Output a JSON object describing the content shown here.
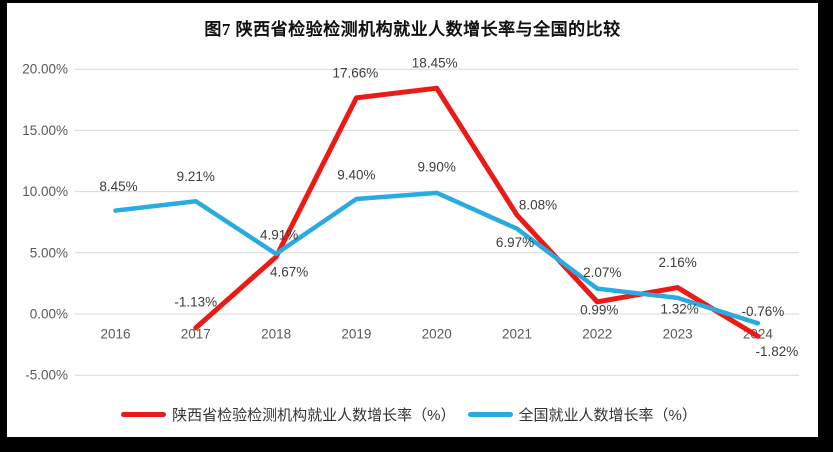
{
  "chart_data": {
    "type": "line",
    "title": "图7 陕西省检验检测机构就业人数增长率与全国的比较",
    "categories": [
      "2016",
      "2017",
      "2018",
      "2019",
      "2020",
      "2021",
      "2022",
      "2023",
      "2024"
    ],
    "y_tick_labels": [
      "20.00%",
      "15.00%",
      "10.00%",
      "5.00%",
      "0.00%",
      "-5.00%"
    ],
    "ylim": [
      -5,
      20
    ],
    "grid": "horizontal",
    "legend_position": "bottom",
    "series": [
      {
        "name": "陕西省检验检测机构就业人数增长率（%）",
        "color": "#ec1a16",
        "values": [
          null,
          -1.13,
          4.67,
          17.66,
          18.45,
          8.08,
          0.99,
          2.16,
          -1.82
        ],
        "labels": [
          "",
          "-1.13%",
          "4.67%",
          "17.66%",
          "18.45%",
          "8.08%",
          "0.99%",
          "2.16%",
          "-1.82%"
        ],
        "label_offsets": [
          [
            0,
            0
          ],
          [
            0,
            -26
          ],
          [
            13,
            15
          ],
          [
            -1,
            -25
          ],
          [
            -2,
            -25
          ],
          [
            21,
            -10
          ],
          [
            2,
            8
          ],
          [
            0,
            -25
          ],
          [
            19,
            15
          ]
        ]
      },
      {
        "name": "全国就业人数增长率（%）",
        "color": "#29abe2",
        "values": [
          8.45,
          9.21,
          4.91,
          9.4,
          9.9,
          6.97,
          2.07,
          1.32,
          -0.76
        ],
        "labels": [
          "8.45%",
          "9.21%",
          "4.91%",
          "9.40%",
          "9.90%",
          "6.97%",
          "2.07%",
          "1.32%",
          "-0.76%"
        ],
        "label_offsets": [
          [
            3,
            -24
          ],
          [
            0,
            -25
          ],
          [
            3,
            -19
          ],
          [
            0,
            -24
          ],
          [
            0,
            -26
          ],
          [
            -2,
            14
          ],
          [
            5,
            -16
          ],
          [
            2,
            11
          ],
          [
            5,
            -12
          ]
        ]
      }
    ],
    "colors": {
      "grid": "#d9d9d9",
      "tick_text": "#595959",
      "data_label": "#3d3d3d",
      "frame": "#000000",
      "background": "#ffffff"
    }
  }
}
